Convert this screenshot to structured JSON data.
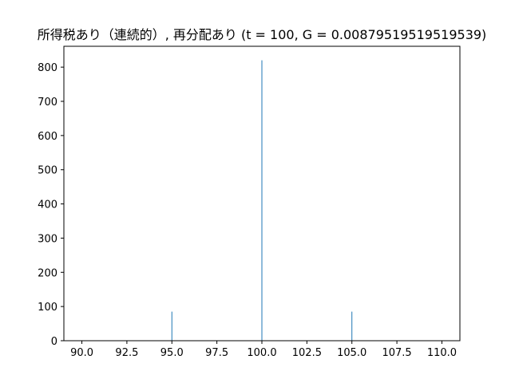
{
  "chart_data": {
    "type": "bar",
    "title": "所得税あり（連続的）, 再分配あり (t = 100, G = 0.00879519519519539)",
    "xlabel": "",
    "ylabel": "",
    "xlim": [
      89.0,
      111.0
    ],
    "ylim": [
      0,
      861
    ],
    "x_ticks": [
      90.0,
      92.5,
      95.0,
      97.5,
      100.0,
      102.5,
      105.0,
      107.5,
      110.0
    ],
    "x_tick_labels": [
      "90.0",
      "92.5",
      "95.0",
      "97.5",
      "100.0",
      "102.5",
      "105.0",
      "107.5",
      "110.0"
    ],
    "y_ticks": [
      0,
      100,
      200,
      300,
      400,
      500,
      600,
      700,
      800
    ],
    "y_tick_labels": [
      "0",
      "100",
      "200",
      "300",
      "400",
      "500",
      "600",
      "700",
      "800"
    ],
    "bar_width": 0.03,
    "bar_color": "#1f77b4",
    "grid": false,
    "points": [
      {
        "x": 95,
        "y": 85
      },
      {
        "x": 100,
        "y": 820
      },
      {
        "x": 105,
        "y": 85
      }
    ]
  }
}
